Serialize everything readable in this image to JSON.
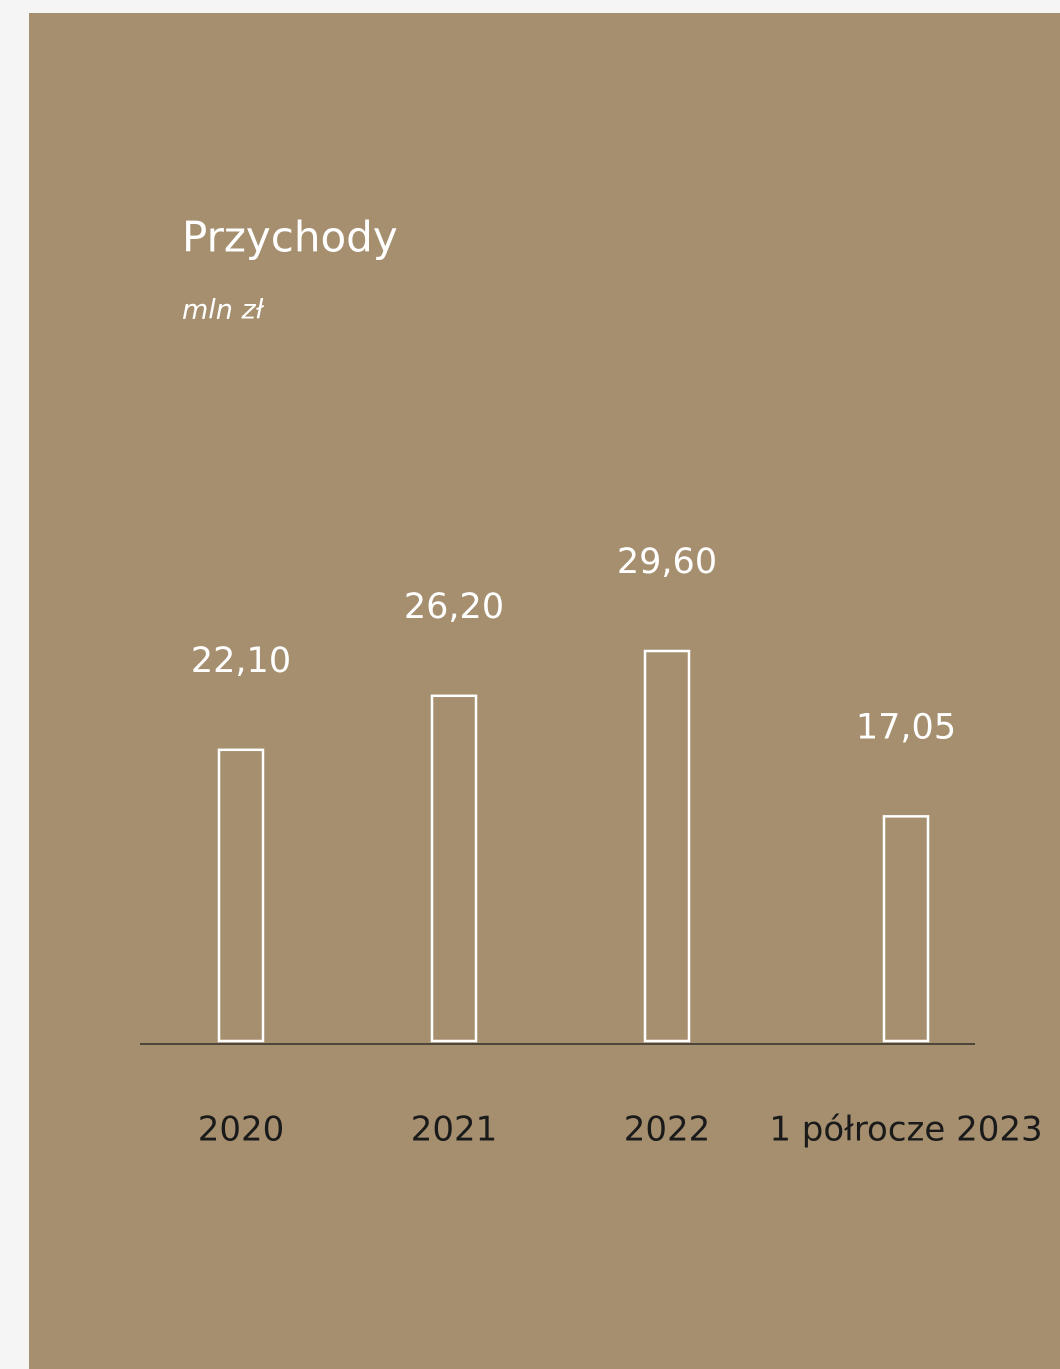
{
  "chart_data": {
    "type": "bar",
    "title": "Przychody",
    "subtitle": "mln zł",
    "categories": [
      "2020",
      "2021",
      "2022",
      "1 półrocze 2023"
    ],
    "values": [
      22.1,
      26.2,
      29.6,
      17.05
    ],
    "value_labels": [
      "22,10",
      "26,20",
      "29,60",
      "17,05"
    ],
    "color": "#ffffff"
  }
}
